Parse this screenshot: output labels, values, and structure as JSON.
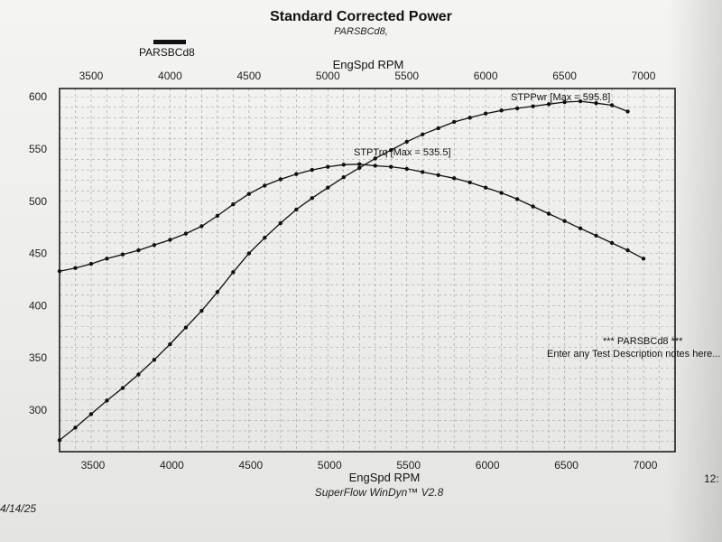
{
  "title": "Standard Corrected Power",
  "subtitle": "PARSBCd8,",
  "legend": {
    "label": "PARSBCd8"
  },
  "footer": {
    "date": "4/14/25",
    "software": "SuperFlow WinDyn™ V2.8",
    "time_partial": "12:"
  },
  "notes": {
    "line1": "*** PARSBCd8 ***",
    "line2": "Enter any Test Description notes here..."
  },
  "chart_data": {
    "type": "line",
    "xlabel": "EngSpd  RPM",
    "xlim": [
      3300,
      7200
    ],
    "ylim": [
      260,
      608
    ],
    "x_ticks": [
      3500,
      4000,
      4500,
      5000,
      5500,
      6000,
      6500,
      7000
    ],
    "y_ticks": [
      300,
      350,
      400,
      450,
      500,
      550,
      600
    ],
    "grid": true,
    "series": [
      {
        "name": "STPPwr",
        "annotation": "STPPwr [Max = 595.8]",
        "x": [
          3300,
          3400,
          3500,
          3600,
          3700,
          3800,
          3900,
          4000,
          4100,
          4200,
          4300,
          4400,
          4500,
          4600,
          4700,
          4800,
          4900,
          5000,
          5100,
          5200,
          5300,
          5400,
          5500,
          5600,
          5700,
          5800,
          5900,
          6000,
          6100,
          6200,
          6300,
          6400,
          6500,
          6600,
          6700,
          6800,
          6900
        ],
        "values": [
          271,
          283,
          296,
          309,
          321,
          334,
          348,
          363,
          379,
          395,
          413,
          432,
          450,
          465,
          479,
          492,
          503,
          513,
          523,
          532,
          541,
          549,
          557,
          564,
          570,
          576,
          580,
          584,
          587,
          589,
          591,
          593,
          595,
          595.8,
          594,
          592,
          586
        ]
      },
      {
        "name": "STPTrq",
        "annotation": "STPTrq [Max = 535.5]",
        "x": [
          3300,
          3400,
          3500,
          3600,
          3700,
          3800,
          3900,
          4000,
          4100,
          4200,
          4300,
          4400,
          4500,
          4600,
          4700,
          4800,
          4900,
          5000,
          5100,
          5200,
          5300,
          5400,
          5500,
          5600,
          5700,
          5800,
          5900,
          6000,
          6100,
          6200,
          6300,
          6400,
          6500,
          6600,
          6700,
          6800,
          6900,
          7000
        ],
        "values": [
          433,
          436,
          440,
          445,
          449,
          453,
          458,
          463,
          469,
          476,
          486,
          497,
          507,
          515,
          521,
          526,
          530,
          533,
          535,
          535.5,
          534,
          533,
          531,
          528,
          525,
          522,
          518,
          513,
          508,
          502,
          495,
          488,
          481,
          474,
          467,
          460,
          453,
          445
        ]
      }
    ]
  }
}
